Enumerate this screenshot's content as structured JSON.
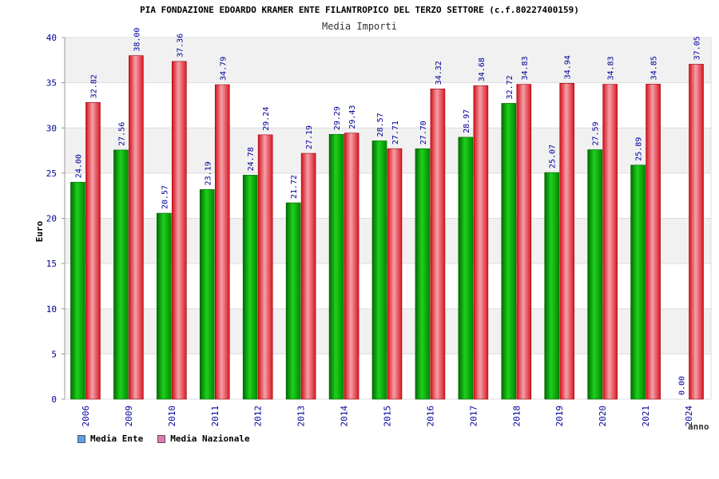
{
  "title": "PIA FONDAZIONE EDOARDO KRAMER ENTE FILANTROPICO DEL TERZO SETTORE (c.f.80227400159)",
  "subtitle": "Media Importi",
  "colors": {
    "ente": "#00b000",
    "nazionale": "#e8202a",
    "legend_ente": "#5aa0e6",
    "legend_nazionale": "#e07ab0",
    "axis_text": "#000099",
    "label_text": "#000099"
  },
  "legend": {
    "ente": "Media Ente",
    "nazionale": "Media Nazionale"
  },
  "chart_data": {
    "type": "bar",
    "xlabel": "anno",
    "ylabel": "Euro",
    "ylim": [
      0,
      40
    ],
    "yticks": [
      0,
      5,
      10,
      15,
      20,
      25,
      30,
      35,
      40
    ],
    "grid": true,
    "legend_position": "bottom-left",
    "categories": [
      "2006",
      "2009",
      "2010",
      "2011",
      "2012",
      "2013",
      "2014",
      "2015",
      "2016",
      "2017",
      "2018",
      "2019",
      "2020",
      "2021",
      "2024"
    ],
    "series": [
      {
        "name": "Media Ente",
        "values": [
          24.0,
          27.56,
          20.57,
          23.19,
          24.78,
          21.72,
          29.29,
          28.57,
          27.7,
          28.97,
          32.72,
          25.07,
          27.59,
          25.89,
          0.0
        ],
        "labels": [
          "24.00",
          "27.56",
          "20.57",
          "23.19",
          "24.78",
          "21.72",
          "29.29",
          "28.57",
          "27.70",
          "28.97",
          "32.72",
          "25.07",
          "27.59",
          "25.89",
          "0.00"
        ]
      },
      {
        "name": "Media Nazionale",
        "values": [
          32.82,
          38.0,
          37.36,
          34.79,
          29.24,
          27.19,
          29.43,
          27.71,
          34.32,
          34.68,
          34.83,
          34.94,
          34.83,
          34.85,
          37.05
        ],
        "labels": [
          "32.82",
          "38.00",
          "37.36",
          "34.79",
          "29.24",
          "27.19",
          "29.43",
          "27.71",
          "34.32",
          "34.68",
          "34.83",
          "34.94",
          "34.83",
          "34.85",
          "37.05"
        ]
      }
    ]
  }
}
